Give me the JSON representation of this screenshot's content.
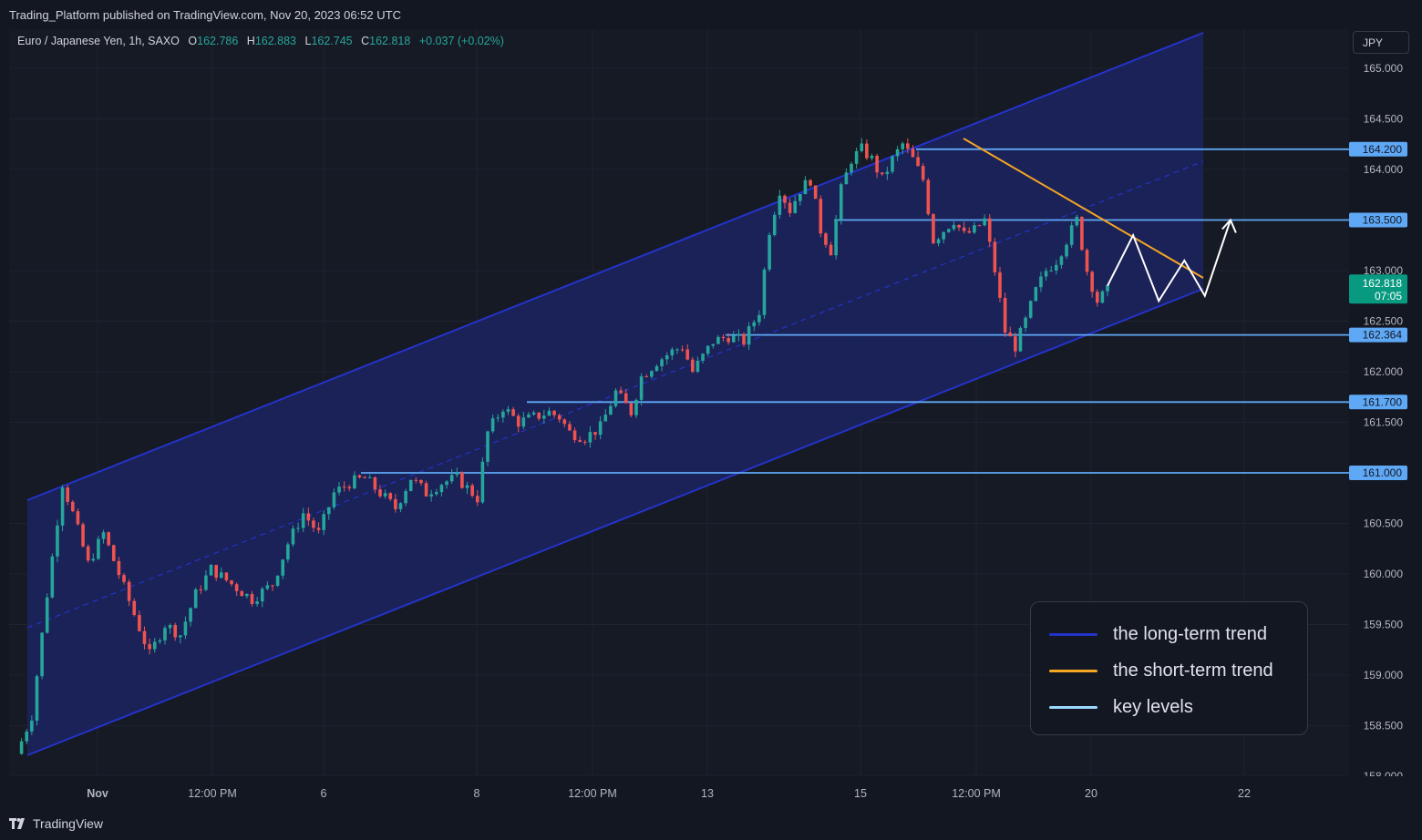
{
  "header": {
    "published_text": "Trading_Platform published on TradingView.com, Nov 20, 2023 06:52 UTC"
  },
  "symbol_legend": {
    "title": "Euro / Japanese Yen, 1h, SAXO",
    "open_label": "O",
    "open_value": "162.786",
    "high_label": "H",
    "high_value": "162.883",
    "low_label": "L",
    "low_value": "162.745",
    "close_label": "C",
    "close_value": "162.818",
    "change": "+0.037 (+0.02%)"
  },
  "currency_button": "JPY",
  "footer": {
    "brand": "TradingView"
  },
  "colors": {
    "up": "#26a69a",
    "down": "#ef5350",
    "channel": "#2433c9",
    "short_trend": "#f5a623",
    "key_level": "#5fa8f5",
    "projection": "#ffffff"
  },
  "chart_data": {
    "type": "candlestick",
    "symbol": "EURJPY",
    "timeframe": "1h",
    "y_axis": {
      "ticks": [
        "165.000",
        "164.500",
        "164.000",
        "163.000",
        "162.500",
        "162.000",
        "161.500",
        "160.500",
        "160.000",
        "159.500",
        "159.000",
        "158.500",
        "158.000"
      ],
      "tick_values": [
        165.0,
        164.5,
        164.0,
        163.0,
        162.5,
        162.0,
        161.5,
        160.5,
        160.0,
        159.5,
        159.0,
        158.5,
        158.0
      ]
    },
    "x_axis": {
      "ticks": [
        "Nov",
        "12:00 PM",
        "6",
        "8",
        "12:00 PM",
        "13",
        "15",
        "12:00 PM",
        "20",
        "22"
      ]
    },
    "key_levels": [
      {
        "label": "164.200",
        "value": 164.2
      },
      {
        "label": "163.500",
        "value": 163.5
      },
      {
        "label": "162.364",
        "value": 162.364
      },
      {
        "label": "161.700",
        "value": 161.7
      },
      {
        "label": "161.000",
        "value": 161.0
      }
    ],
    "last_price": {
      "label": "162.818",
      "countdown": "07:05",
      "value": 162.818
    },
    "price_path": [
      [
        0,
        158.22
      ],
      [
        3,
        158.6
      ],
      [
        6,
        159.8
      ],
      [
        9,
        160.9
      ],
      [
        11,
        160.6
      ],
      [
        14,
        160.1
      ],
      [
        17,
        160.4
      ],
      [
        20,
        160.0
      ],
      [
        23,
        159.6
      ],
      [
        26,
        159.2
      ],
      [
        29,
        159.5
      ],
      [
        32,
        159.4
      ],
      [
        35,
        159.8
      ],
      [
        38,
        160.05
      ],
      [
        42,
        159.9
      ],
      [
        46,
        159.75
      ],
      [
        50,
        159.9
      ],
      [
        53,
        160.3
      ],
      [
        56,
        160.6
      ],
      [
        59,
        160.4
      ],
      [
        62,
        160.8
      ],
      [
        65,
        160.9
      ],
      [
        68,
        160.95
      ],
      [
        71,
        160.8
      ],
      [
        74,
        160.65
      ],
      [
        77,
        160.95
      ],
      [
        80,
        160.8
      ],
      [
        83,
        160.9
      ],
      [
        86,
        160.95
      ],
      [
        88,
        160.85
      ],
      [
        90,
        160.75
      ],
      [
        92,
        161.4
      ],
      [
        95,
        161.65
      ],
      [
        98,
        161.5
      ],
      [
        101,
        161.55
      ],
      [
        104,
        161.6
      ],
      [
        106,
        161.55
      ],
      [
        108,
        161.4
      ],
      [
        111,
        161.35
      ],
      [
        114,
        161.45
      ],
      [
        117,
        161.8
      ],
      [
        120,
        161.6
      ],
      [
        122,
        161.95
      ],
      [
        125,
        162.1
      ],
      [
        128,
        162.2
      ],
      [
        130,
        162.25
      ],
      [
        132,
        162.0
      ],
      [
        134,
        162.15
      ],
      [
        136,
        162.3
      ],
      [
        139,
        162.35
      ],
      [
        142,
        162.3
      ],
      [
        145,
        162.6
      ],
      [
        147,
        163.4
      ],
      [
        149,
        163.8
      ],
      [
        151,
        163.6
      ],
      [
        153,
        163.8
      ],
      [
        155,
        163.9
      ],
      [
        157,
        163.4
      ],
      [
        159,
        163.2
      ],
      [
        161,
        163.8
      ],
      [
        163,
        164.1
      ],
      [
        165,
        164.2
      ],
      [
        167,
        164.1
      ],
      [
        169,
        163.9
      ],
      [
        171,
        164.1
      ],
      [
        173,
        164.25
      ],
      [
        175,
        164.1
      ],
      [
        177,
        163.9
      ],
      [
        179,
        163.3
      ],
      [
        181,
        163.4
      ],
      [
        183,
        163.5
      ],
      [
        185,
        163.35
      ],
      [
        187,
        163.4
      ],
      [
        189,
        163.5
      ],
      [
        191,
        163.0
      ],
      [
        193,
        162.4
      ],
      [
        195,
        162.25
      ],
      [
        197,
        162.5
      ],
      [
        199,
        162.8
      ],
      [
        201,
        163.0
      ],
      [
        203,
        163.1
      ],
      [
        205,
        163.3
      ],
      [
        207,
        163.5
      ],
      [
        209,
        163.0
      ],
      [
        211,
        162.7
      ],
      [
        213,
        162.8
      ]
    ],
    "projection_path": [
      [
        213,
        162.85
      ],
      [
        218,
        163.35
      ],
      [
        223,
        162.7
      ],
      [
        228,
        163.1
      ],
      [
        232,
        162.75
      ],
      [
        237,
        163.5
      ]
    ]
  }
}
